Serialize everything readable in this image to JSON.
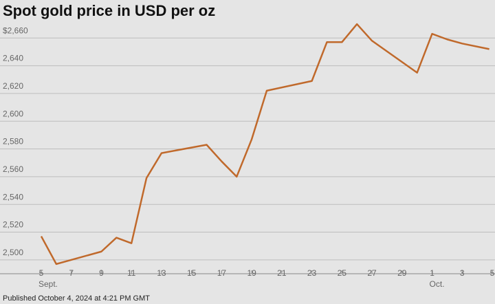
{
  "chart_data": {
    "type": "line",
    "title": "Spot gold price in USD per oz",
    "footer": "Published October 4, 2024 at 4:21 PM GMT",
    "month_labels": [
      {
        "x": 0,
        "label": "Sept."
      },
      {
        "x": 26,
        "label": "Oct."
      }
    ],
    "x": [
      0,
      1,
      4,
      5,
      6,
      7,
      8,
      11,
      12,
      13,
      14,
      15,
      18,
      19,
      20,
      21,
      22,
      25,
      26,
      27,
      28,
      29.8
    ],
    "values": [
      2517,
      2497,
      2506,
      2516,
      2512,
      2559,
      2577,
      2583,
      2571,
      2560,
      2587,
      2622,
      2629,
      2657,
      2657,
      2670,
      2658,
      2635,
      2663,
      2659,
      2656,
      2652
    ],
    "color": "#c0692b",
    "xlim": [
      0,
      30
    ],
    "xticks": [
      {
        "value": 0,
        "label": "5"
      },
      {
        "value": 2,
        "label": "7"
      },
      {
        "value": 4,
        "label": "9"
      },
      {
        "value": 6,
        "label": "11"
      },
      {
        "value": 8,
        "label": "13"
      },
      {
        "value": 10,
        "label": "15"
      },
      {
        "value": 12,
        "label": "17"
      },
      {
        "value": 14,
        "label": "19"
      },
      {
        "value": 16,
        "label": "21"
      },
      {
        "value": 18,
        "label": "23"
      },
      {
        "value": 20,
        "label": "25"
      },
      {
        "value": 22,
        "label": "27"
      },
      {
        "value": 24,
        "label": "29"
      },
      {
        "value": 26,
        "label": "1"
      },
      {
        "value": 28,
        "label": "3"
      },
      {
        "value": 30,
        "label": "5"
      }
    ],
    "ylim": [
      2490,
      2675
    ],
    "yticks": [
      {
        "value": 2500,
        "label": "2,500"
      },
      {
        "value": 2520,
        "label": "2,520"
      },
      {
        "value": 2540,
        "label": "2,540"
      },
      {
        "value": 2560,
        "label": "2,560"
      },
      {
        "value": 2580,
        "label": "2,580"
      },
      {
        "value": 2600,
        "label": "2,600"
      },
      {
        "value": 2620,
        "label": "2,620"
      },
      {
        "value": 2640,
        "label": "2,640"
      },
      {
        "value": 2660,
        "label": "$2,660"
      }
    ],
    "grid": true
  }
}
